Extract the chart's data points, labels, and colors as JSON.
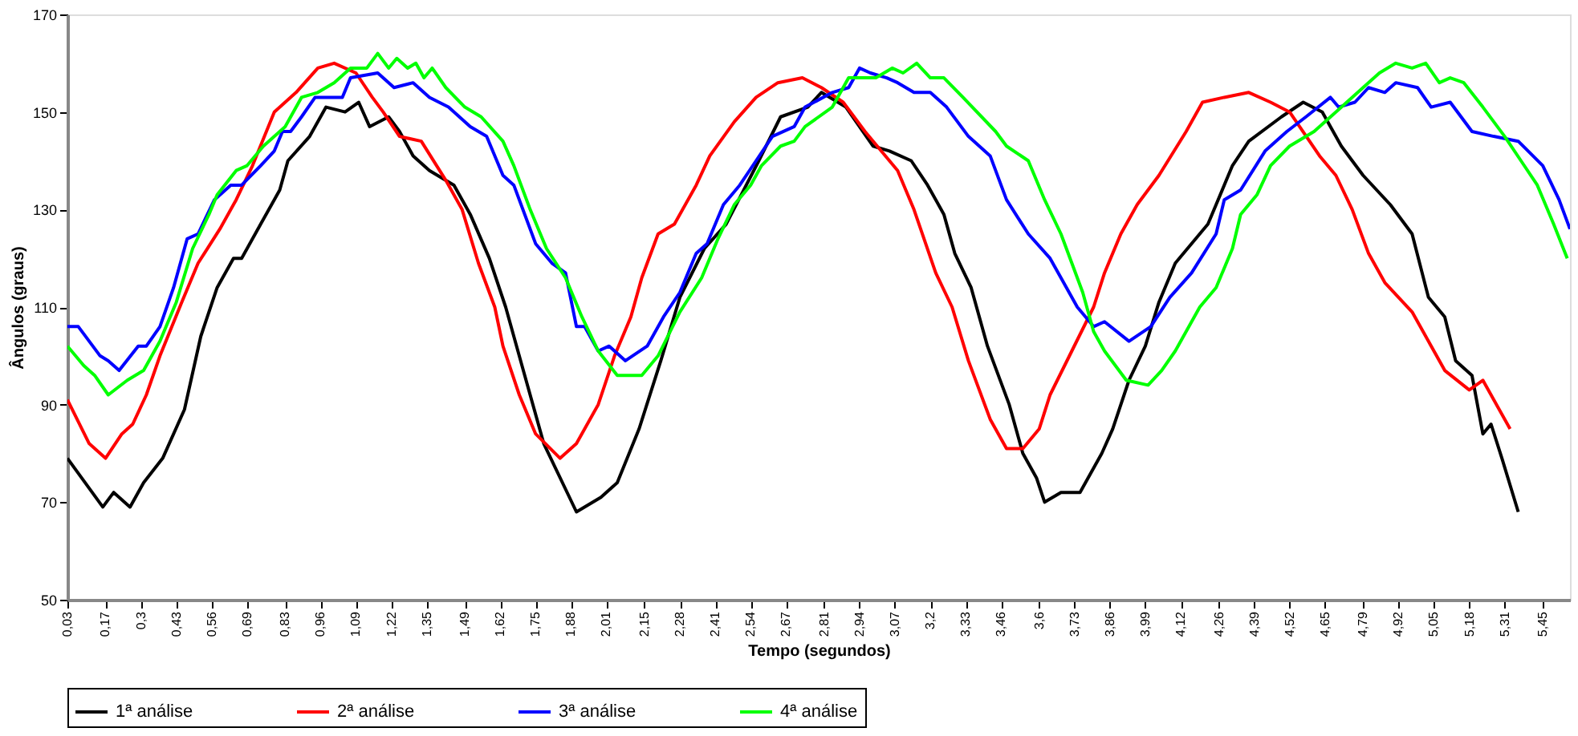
{
  "chart_data": {
    "type": "line",
    "xlabel": "Tempo (segundos)",
    "ylabel": "Ângulos (graus)",
    "xlim": [
      0.03,
      5.55
    ],
    "ylim": [
      50,
      170
    ],
    "yticks": [
      50,
      70,
      90,
      110,
      130,
      150,
      170
    ],
    "xticks": [
      {
        "value": 0.03,
        "label": "0,03"
      },
      {
        "value": 0.17,
        "label": "0,17"
      },
      {
        "value": 0.3,
        "label": "0,3"
      },
      {
        "value": 0.43,
        "label": "0,43"
      },
      {
        "value": 0.56,
        "label": "0,56"
      },
      {
        "value": 0.69,
        "label": "0,69"
      },
      {
        "value": 0.83,
        "label": "0,83"
      },
      {
        "value": 0.96,
        "label": "0,96"
      },
      {
        "value": 1.09,
        "label": "1,09"
      },
      {
        "value": 1.22,
        "label": "1,22"
      },
      {
        "value": 1.35,
        "label": "1,35"
      },
      {
        "value": 1.49,
        "label": "1,49"
      },
      {
        "value": 1.62,
        "label": "1,62"
      },
      {
        "value": 1.75,
        "label": "1,75"
      },
      {
        "value": 1.88,
        "label": "1,88"
      },
      {
        "value": 2.01,
        "label": "2,01"
      },
      {
        "value": 2.15,
        "label": "2,15"
      },
      {
        "value": 2.28,
        "label": "2,28"
      },
      {
        "value": 2.41,
        "label": "2,41"
      },
      {
        "value": 2.54,
        "label": "2,54"
      },
      {
        "value": 2.67,
        "label": "2,67"
      },
      {
        "value": 2.81,
        "label": "2,81"
      },
      {
        "value": 2.94,
        "label": "2,94"
      },
      {
        "value": 3.07,
        "label": "3,07"
      },
      {
        "value": 3.2,
        "label": "3,2"
      },
      {
        "value": 3.33,
        "label": "3,33"
      },
      {
        "value": 3.46,
        "label": "3,46"
      },
      {
        "value": 3.6,
        "label": "3,6"
      },
      {
        "value": 3.73,
        "label": "3,73"
      },
      {
        "value": 3.86,
        "label": "3,86"
      },
      {
        "value": 3.99,
        "label": "3,99"
      },
      {
        "value": 4.12,
        "label": "4,12"
      },
      {
        "value": 4.26,
        "label": "4,26"
      },
      {
        "value": 4.39,
        "label": "4,39"
      },
      {
        "value": 4.52,
        "label": "4,52"
      },
      {
        "value": 4.65,
        "label": "4,65"
      },
      {
        "value": 4.79,
        "label": "4,79"
      },
      {
        "value": 4.92,
        "label": "4,92"
      },
      {
        "value": 5.05,
        "label": "5,05"
      },
      {
        "value": 5.18,
        "label": "5,18"
      },
      {
        "value": 5.31,
        "label": "5,31"
      },
      {
        "value": 5.45,
        "label": "5,45"
      }
    ],
    "grid": false,
    "legend": "bottom",
    "marker": "none",
    "line_style": "solid",
    "series": [
      {
        "name": "1ª análise",
        "color": "#000000",
        "x": [
          0.03,
          0.16,
          0.2,
          0.26,
          0.31,
          0.38,
          0.46,
          0.52,
          0.58,
          0.64,
          0.67,
          0.74,
          0.81,
          0.84,
          0.92,
          0.98,
          1.05,
          1.1,
          1.14,
          1.21,
          1.25,
          1.3,
          1.36,
          1.45,
          1.51,
          1.58,
          1.64,
          1.71,
          1.78,
          1.9,
          1.99,
          2.05,
          2.13,
          2.21,
          2.28,
          2.37,
          2.45,
          2.57,
          2.65,
          2.75,
          2.8,
          2.89,
          2.99,
          3.05,
          3.13,
          3.19,
          3.25,
          3.29,
          3.35,
          3.41,
          3.49,
          3.54,
          3.59,
          3.62,
          3.68,
          3.75,
          3.83,
          3.87,
          3.93,
          3.99,
          4.04,
          4.1,
          4.22,
          4.31,
          4.37,
          4.49,
          4.57,
          4.64,
          4.71,
          4.79,
          4.89,
          4.97,
          5.03,
          5.09,
          5.13,
          5.19,
          5.23,
          5.26,
          5.3,
          5.36
        ],
        "values": [
          79,
          69,
          72,
          69,
          74,
          79,
          89,
          104,
          114,
          120,
          120,
          127,
          134,
          140,
          145,
          151,
          150,
          152,
          147,
          149,
          146,
          141,
          138,
          135,
          129,
          120,
          110,
          96,
          82,
          68,
          71,
          74,
          85,
          99,
          112,
          122,
          127,
          140,
          149,
          151,
          154,
          151,
          143,
          142,
          140,
          135,
          129,
          121,
          114,
          102,
          90,
          80,
          75,
          70,
          72,
          72,
          80,
          85,
          95,
          102,
          111,
          119,
          127,
          139,
          144,
          149,
          152,
          150,
          143,
          137,
          131,
          125,
          112,
          108,
          99,
          96,
          84,
          86,
          79,
          68
        ]
      },
      {
        "name": "2ª análise",
        "color": "#ff0000",
        "x": [
          0.03,
          0.11,
          0.17,
          0.23,
          0.27,
          0.32,
          0.37,
          0.45,
          0.51,
          0.59,
          0.65,
          0.71,
          0.79,
          0.87,
          0.95,
          1.01,
          1.09,
          1.15,
          1.19,
          1.25,
          1.33,
          1.42,
          1.48,
          1.54,
          1.6,
          1.63,
          1.69,
          1.75,
          1.84,
          1.9,
          1.98,
          2.04,
          2.1,
          2.14,
          2.2,
          2.26,
          2.34,
          2.39,
          2.48,
          2.56,
          2.64,
          2.73,
          2.8,
          2.88,
          2.96,
          3.08,
          3.14,
          3.22,
          3.28,
          3.34,
          3.42,
          3.48,
          3.54,
          3.6,
          3.64,
          3.72,
          3.8,
          3.84,
          3.9,
          3.96,
          4.04,
          4.14,
          4.2,
          4.28,
          4.37,
          4.45,
          4.52,
          4.63,
          4.69,
          4.75,
          4.81,
          4.87,
          4.97,
          5.03,
          5.09,
          5.18,
          5.23,
          5.33
        ],
        "values": [
          91,
          82,
          79,
          84,
          86,
          92,
          100,
          111,
          119,
          126,
          132,
          139,
          150,
          154,
          159,
          160,
          158,
          153,
          150,
          145,
          144,
          136,
          130,
          119,
          110,
          102,
          92,
          84,
          79,
          82,
          90,
          100,
          108,
          116,
          125,
          127,
          135,
          141,
          148,
          153,
          156,
          157,
          155,
          152,
          146,
          138,
          130,
          117,
          110,
          99,
          87,
          81,
          81,
          85,
          92,
          101,
          110,
          117,
          125,
          131,
          137,
          146,
          152,
          153,
          154,
          152,
          150,
          141,
          137,
          130,
          121,
          115,
          109,
          103,
          97,
          93,
          95,
          85
        ]
      },
      {
        "name": "3ª análise",
        "color": "#0000ff",
        "x": [
          0.03,
          0.07,
          0.15,
          0.18,
          0.22,
          0.29,
          0.32,
          0.37,
          0.42,
          0.47,
          0.51,
          0.57,
          0.63,
          0.67,
          0.74,
          0.79,
          0.82,
          0.85,
          0.89,
          0.94,
          0.99,
          1.04,
          1.07,
          1.17,
          1.23,
          1.3,
          1.36,
          1.43,
          1.51,
          1.57,
          1.63,
          1.67,
          1.75,
          1.81,
          1.86,
          1.9,
          1.93,
          1.98,
          2.02,
          2.08,
          2.16,
          2.22,
          2.28,
          2.34,
          2.38,
          2.44,
          2.5,
          2.56,
          2.62,
          2.7,
          2.74,
          2.84,
          2.9,
          2.94,
          2.98,
          3.04,
          3.08,
          3.14,
          3.2,
          3.26,
          3.34,
          3.42,
          3.48,
          3.56,
          3.64,
          3.68,
          3.74,
          3.8,
          3.84,
          3.93,
          4.01,
          4.08,
          4.16,
          4.25,
          4.28,
          4.34,
          4.43,
          4.51,
          4.58,
          4.67,
          4.7,
          4.76,
          4.81,
          4.87,
          4.91,
          4.99,
          5.04,
          5.11,
          5.19,
          5.27,
          5.36,
          5.45,
          5.51,
          5.55
        ],
        "values": [
          106,
          106,
          100,
          99,
          97,
          102,
          102,
          106,
          114,
          124,
          125,
          132,
          135,
          135,
          139,
          142,
          146,
          146,
          149,
          153,
          153,
          153,
          157,
          158,
          155,
          156,
          153,
          151,
          147,
          145,
          137,
          135,
          123,
          119,
          117,
          106,
          106,
          101,
          102,
          99,
          102,
          108,
          113,
          121,
          123,
          131,
          135,
          140,
          145,
          147,
          151,
          154,
          155,
          159,
          158,
          157,
          156,
          154,
          154,
          151,
          145,
          141,
          132,
          125,
          120,
          116,
          110,
          106,
          107,
          103,
          106,
          112,
          117,
          125,
          132,
          134,
          142,
          146,
          149,
          153,
          151,
          152,
          155,
          154,
          156,
          155,
          151,
          152,
          146,
          145,
          144,
          139,
          132,
          126
        ]
      },
      {
        "name": "4ª análise",
        "color": "#00ff00",
        "x": [
          0.03,
          0.09,
          0.13,
          0.18,
          0.25,
          0.31,
          0.37,
          0.43,
          0.49,
          0.55,
          0.58,
          0.65,
          0.69,
          0.75,
          0.83,
          0.89,
          0.95,
          1.01,
          1.07,
          1.13,
          1.17,
          1.21,
          1.24,
          1.28,
          1.31,
          1.34,
          1.37,
          1.42,
          1.49,
          1.55,
          1.63,
          1.67,
          1.73,
          1.79,
          1.86,
          1.92,
          1.98,
          2.05,
          2.14,
          2.2,
          2.28,
          2.36,
          2.42,
          2.48,
          2.54,
          2.58,
          2.65,
          2.7,
          2.74,
          2.84,
          2.9,
          3.0,
          3.06,
          3.1,
          3.15,
          3.2,
          3.25,
          3.32,
          3.44,
          3.48,
          3.56,
          3.62,
          3.68,
          3.72,
          3.76,
          3.8,
          3.84,
          3.92,
          4.0,
          4.05,
          4.1,
          4.19,
          4.25,
          4.31,
          4.34,
          4.4,
          4.45,
          4.52,
          4.61,
          4.69,
          4.79,
          4.85,
          4.91,
          4.97,
          5.02,
          5.07,
          5.11,
          5.16,
          5.23,
          5.31,
          5.37,
          5.43,
          5.49,
          5.54
        ],
        "values": [
          102,
          98,
          96,
          92,
          95,
          97,
          103,
          111,
          122,
          129,
          133,
          138,
          139,
          143,
          147,
          153,
          154,
          156,
          159,
          159,
          162,
          159,
          161,
          159,
          160,
          157,
          159,
          155,
          151,
          149,
          144,
          139,
          130,
          122,
          116,
          108,
          101,
          96,
          96,
          100,
          109,
          116,
          124,
          131,
          135,
          139,
          143,
          144,
          147,
          151,
          157,
          157,
          159,
          158,
          160,
          157,
          157,
          153,
          146,
          143,
          140,
          132,
          125,
          119,
          113,
          105,
          101,
          95,
          94,
          97,
          101,
          110,
          114,
          122,
          129,
          133,
          139,
          143,
          146,
          150,
          155,
          158,
          160,
          159,
          160,
          156,
          157,
          156,
          151,
          145,
          140,
          135,
          127,
          120
        ]
      }
    ]
  }
}
